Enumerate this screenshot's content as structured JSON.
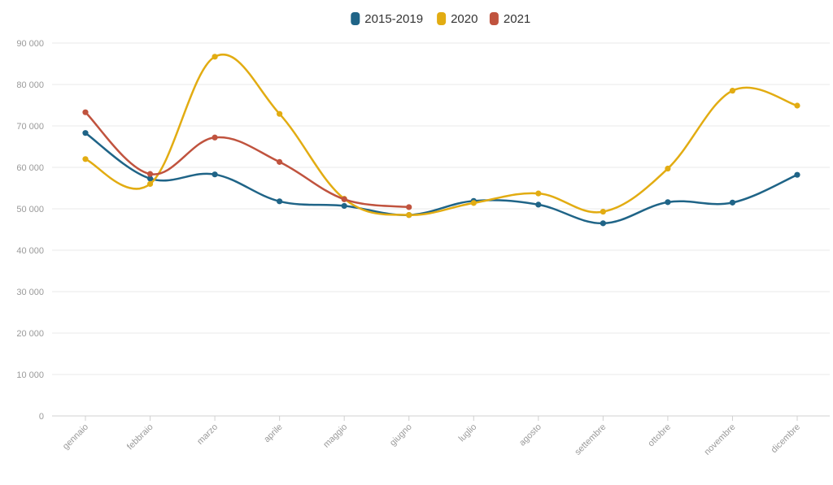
{
  "chart_data": {
    "type": "line",
    "categories": [
      "gennaio",
      "febbraio",
      "marzo",
      "aprile",
      "maggio",
      "giugno",
      "luglio",
      "agosto",
      "settembre",
      "ottobre",
      "novembre",
      "dicembre"
    ],
    "series": [
      {
        "name": "2015-2019",
        "color": "#1f6487",
        "values": [
          68300,
          57300,
          58300,
          51800,
          50700,
          48500,
          51900,
          51000,
          46500,
          51600,
          51500,
          58200
        ]
      },
      {
        "name": "2020",
        "color": "#e2ac12",
        "values": [
          62000,
          56000,
          86700,
          72900,
          52400,
          48500,
          51400,
          53700,
          49300,
          59700,
          78500,
          74900
        ]
      },
      {
        "name": "2021",
        "color": "#c0533e",
        "values": [
          73300,
          58400,
          67200,
          61300,
          52300,
          50400,
          null,
          null,
          null,
          null,
          null,
          null
        ]
      }
    ],
    "ylim": [
      0,
      90000
    ],
    "yticks": [
      "0",
      "10 000",
      "20 000",
      "30 000",
      "40 000",
      "50 000",
      "60 000",
      "70 000",
      "80 000",
      "90 000"
    ],
    "grid": true,
    "legend_position": "top-center",
    "title": "",
    "xlabel": "",
    "ylabel": ""
  }
}
